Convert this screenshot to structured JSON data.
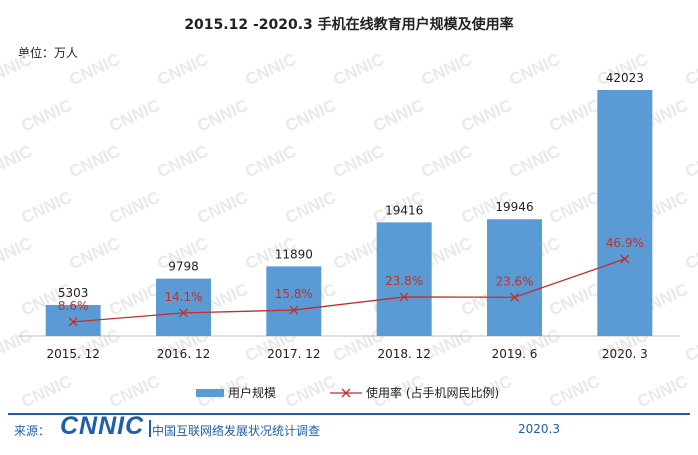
{
  "chart_data": {
    "type": "bar",
    "title": "2015.12 -2020.3 手机在线教育用户规模及使用率",
    "unit": "单位：万人",
    "categories": [
      "2015. 12",
      "2016. 12",
      "2017. 12",
      "2018. 12",
      "2019. 6",
      "2020. 3"
    ],
    "series": [
      {
        "name": "用户规模",
        "kind": "bar",
        "values": [
          5303,
          9798,
          11890,
          19416,
          19946,
          42023
        ],
        "labels": [
          "5303",
          "9798",
          "11890",
          "19416",
          "19946",
          "42023"
        ],
        "color": "#5b9bd5"
      },
      {
        "name": "使用率 (占手机网民比例)",
        "kind": "line",
        "values": [
          8.6,
          14.1,
          15.8,
          23.8,
          23.6,
          46.9
        ],
        "labels": [
          "8.6%",
          "14.1%",
          "15.8%",
          "23.8%",
          "23.6%",
          "46.9%"
        ],
        "color": "#c0302b"
      }
    ],
    "grid": false,
    "legend": "bottom"
  },
  "footer": {
    "source_label": "来源：",
    "logo_text": "CNNIC",
    "survey": "中国互联网络发展状况统计调查",
    "date": "2020.3"
  },
  "watermark": "CNNIC",
  "colors": {
    "brand": "#1f5fa8",
    "bar": "#5b9bd5",
    "line": "#c0302b"
  }
}
